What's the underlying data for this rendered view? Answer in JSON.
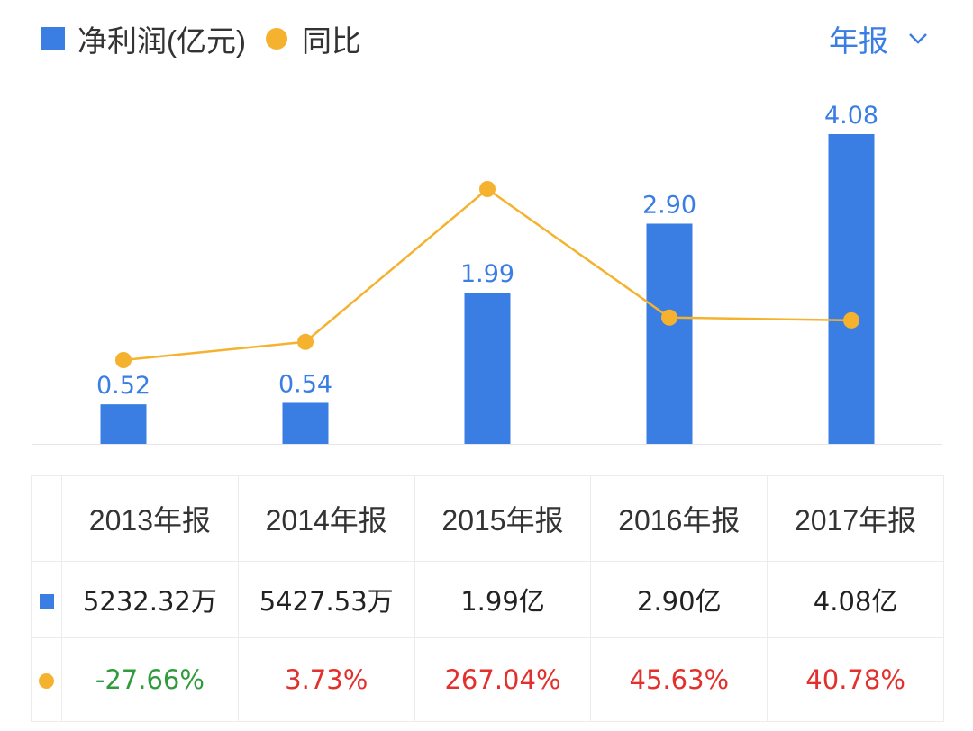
{
  "legend": {
    "series_bar_label": "净利润(亿元)",
    "series_line_label": "同比"
  },
  "period_select": {
    "label": "年报"
  },
  "chart_data": {
    "type": "bar",
    "categories": [
      "2013年报",
      "2014年报",
      "2015年报",
      "2016年报",
      "2017年报"
    ],
    "series": [
      {
        "name": "净利润(亿元)",
        "type": "bar",
        "values": [
          0.52,
          0.54,
          1.99,
          2.9,
          4.08
        ],
        "color": "#3a7ee4"
      },
      {
        "name": "同比",
        "type": "line",
        "values": [
          -27.66,
          3.73,
          267.04,
          45.63,
          40.78
        ],
        "color": "#f5b22f"
      }
    ],
    "bar_labels": [
      "0.52",
      "0.54",
      "1.99",
      "2.90",
      "4.08"
    ],
    "grid": false
  },
  "table": {
    "headers": [
      "2013年报",
      "2014年报",
      "2015年报",
      "2016年报",
      "2017年报"
    ],
    "values": [
      "5232.32万",
      "5427.53万",
      "1.99亿",
      "2.90亿",
      "4.08亿"
    ],
    "yoy": [
      "-27.66%",
      "3.73%",
      "267.04%",
      "45.63%",
      "40.78%"
    ]
  },
  "colors": {
    "bar": "#3a7ee4",
    "line": "#f5b22f",
    "negative": "#2f9b3a",
    "positive": "#e2312d"
  }
}
